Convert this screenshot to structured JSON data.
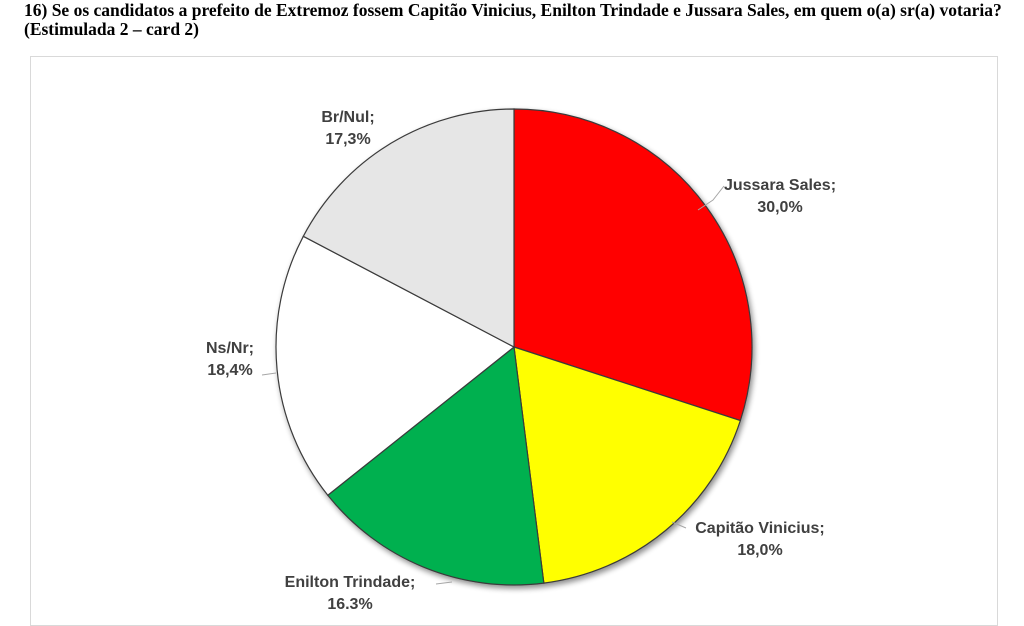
{
  "question": {
    "text": "16) Se os candidatos a prefeito de Extremoz fossem Capitão Vinicius, Enilton Trindade e Jussara Sales, em quem o(a) sr(a) votaria? (Estimulada 2 – card 2)"
  },
  "chart_data": {
    "type": "pie",
    "title": "",
    "start_angle_deg": 0,
    "direction": "clockwise",
    "slices": [
      {
        "label": "Jussara Sales",
        "value": 30.0,
        "value_label": "30,0%",
        "color": "#ff0000"
      },
      {
        "label": "Capitão Vinicius",
        "value": 18.0,
        "value_label": "18,0%",
        "color": "#ffff00"
      },
      {
        "label": "Enilton Trindade",
        "value": 16.3,
        "value_label": "16,3%",
        "color": "#00b050"
      },
      {
        "label": "Ns/Nr",
        "value": 18.4,
        "value_label": "18,4%",
        "color": "#ffffff"
      },
      {
        "label": "Br/Nul",
        "value": 17.3,
        "value_label": "17,3%",
        "color": "#e6e6e6"
      }
    ]
  }
}
